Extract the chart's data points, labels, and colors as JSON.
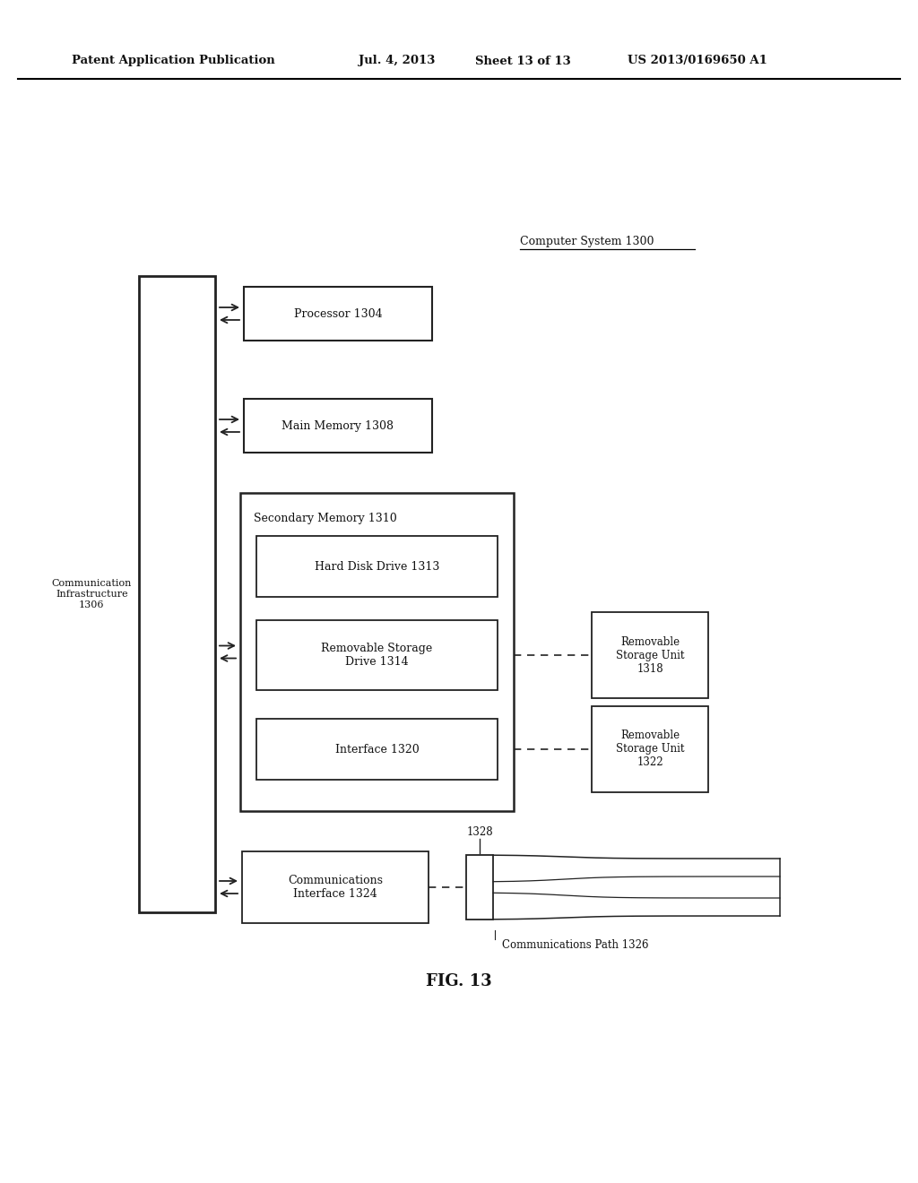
{
  "bg_color": "#ffffff",
  "header_text": "Patent Application Publication",
  "header_date": "Jul. 4, 2013",
  "header_sheet": "Sheet 13 of 13",
  "header_patent": "US 2013/0169650 A1",
  "computer_system_label": "Computer System 1300",
  "fig_label": "FIG. 13",
  "comm_infra_label": "Communication\nInfrastructure\n1306",
  "processor_label": "Processor 1304",
  "main_memory_label": "Main Memory 1308",
  "secondary_memory_label": "Secondary Memory 1310",
  "hdd_label": "Hard Disk Drive 1313",
  "removable_storage_drive_label": "Removable Storage\nDrive 1314",
  "interface_label": "Interface 1320",
  "removable_unit1_label": "Removable\nStorage Unit\n1318",
  "removable_unit2_label": "Removable\nStorage Unit\n1322",
  "comm_interface_label": "Communications\nInterface 1324",
  "comm_path_label": "Communications Path 1326",
  "label_1328": "1328"
}
